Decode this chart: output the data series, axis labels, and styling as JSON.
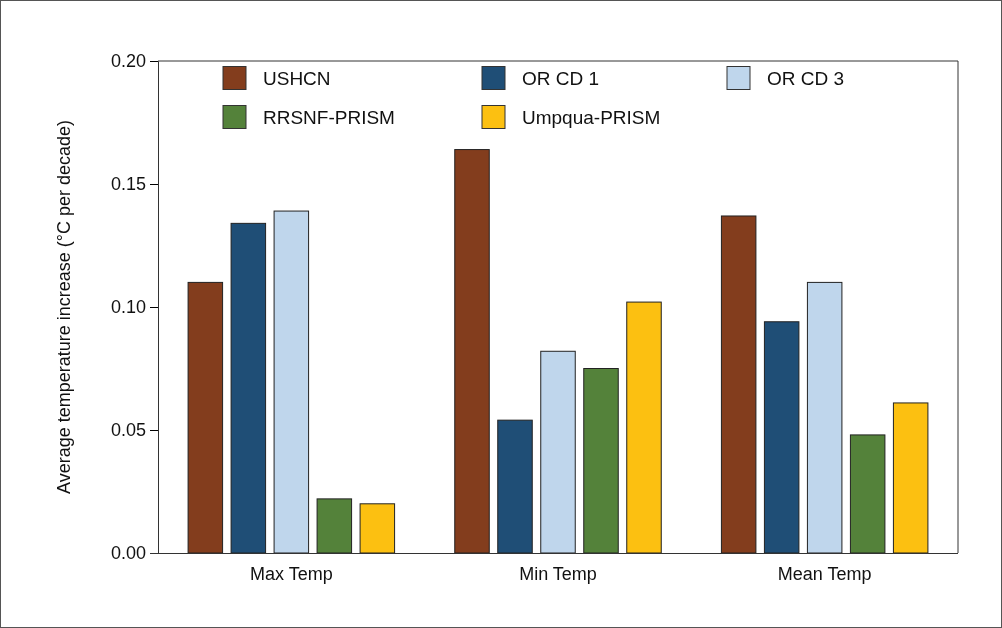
{
  "chart_data": {
    "type": "bar",
    "ylabel": "Average temperature increase (°C per decade)",
    "categories": [
      "Max Temp",
      "Min Temp",
      "Mean Temp"
    ],
    "series": [
      {
        "name": "USHCN",
        "color": "#833d1d",
        "values": [
          0.11,
          0.164,
          0.137
        ]
      },
      {
        "name": "OR CD 1",
        "color": "#1f4e76",
        "values": [
          0.134,
          0.054,
          0.094
        ]
      },
      {
        "name": "OR CD 3",
        "color": "#bfd6ec",
        "values": [
          0.139,
          0.082,
          0.11
        ]
      },
      {
        "name": "RRSNF-PRISM",
        "color": "#54823a",
        "values": [
          0.022,
          0.075,
          0.048
        ]
      },
      {
        "name": "Umpqua-PRISM",
        "color": "#fcc011",
        "values": [
          0.02,
          0.102,
          0.061
        ]
      }
    ],
    "ylim": [
      0,
      0.2
    ],
    "yticks": [
      {
        "value": 0,
        "label": "0.00"
      },
      {
        "value": 0.05,
        "label": "0.05"
      },
      {
        "value": 0.1,
        "label": "0.10"
      },
      {
        "value": 0.15,
        "label": "0.15"
      },
      {
        "value": 0.2,
        "label": "0.20"
      }
    ],
    "legend": "top left",
    "grid": false
  }
}
